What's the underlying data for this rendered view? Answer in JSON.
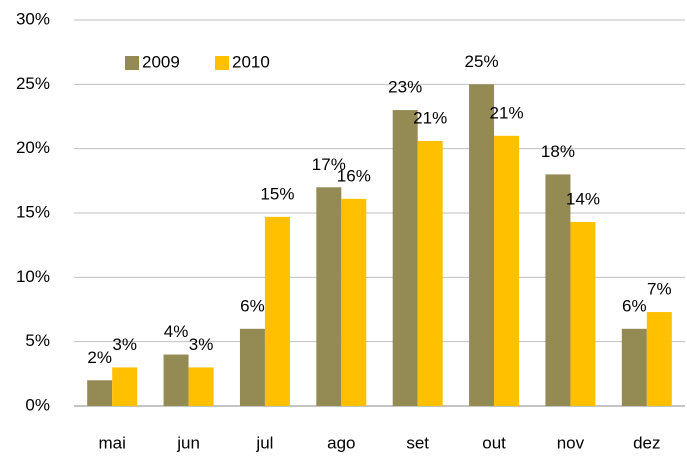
{
  "chart_data": {
    "type": "bar",
    "categories": [
      "mai",
      "jun",
      "jul",
      "ago",
      "set",
      "out",
      "nov",
      "dez"
    ],
    "series": [
      {
        "name": "2009",
        "color": "#948a54",
        "values": [
          2,
          4,
          6,
          17,
          23,
          25,
          18,
          6
        ],
        "value_labels": [
          "2%",
          "4%",
          "6%",
          "17%",
          "23%",
          "25%",
          "18%",
          "6%"
        ]
      },
      {
        "name": "2010",
        "color": "#ffc000",
        "values": [
          3,
          3,
          14.7,
          16.1,
          20.6,
          21,
          14.3,
          7.3
        ],
        "value_labels": [
          "3%",
          "3%",
          "15%",
          "16%",
          "21%",
          "21%",
          "14%",
          "7%"
        ]
      }
    ],
    "ylim": [
      0,
      30
    ],
    "yticks": [
      {
        "value": 0,
        "label": "0%"
      },
      {
        "value": 5,
        "label": "5%"
      },
      {
        "value": 10,
        "label": "10%"
      },
      {
        "value": 15,
        "label": "15%"
      },
      {
        "value": 20,
        "label": "20%"
      },
      {
        "value": 25,
        "label": "25%"
      },
      {
        "value": 30,
        "label": "30%"
      }
    ],
    "grid": true,
    "legend": "top-left"
  }
}
